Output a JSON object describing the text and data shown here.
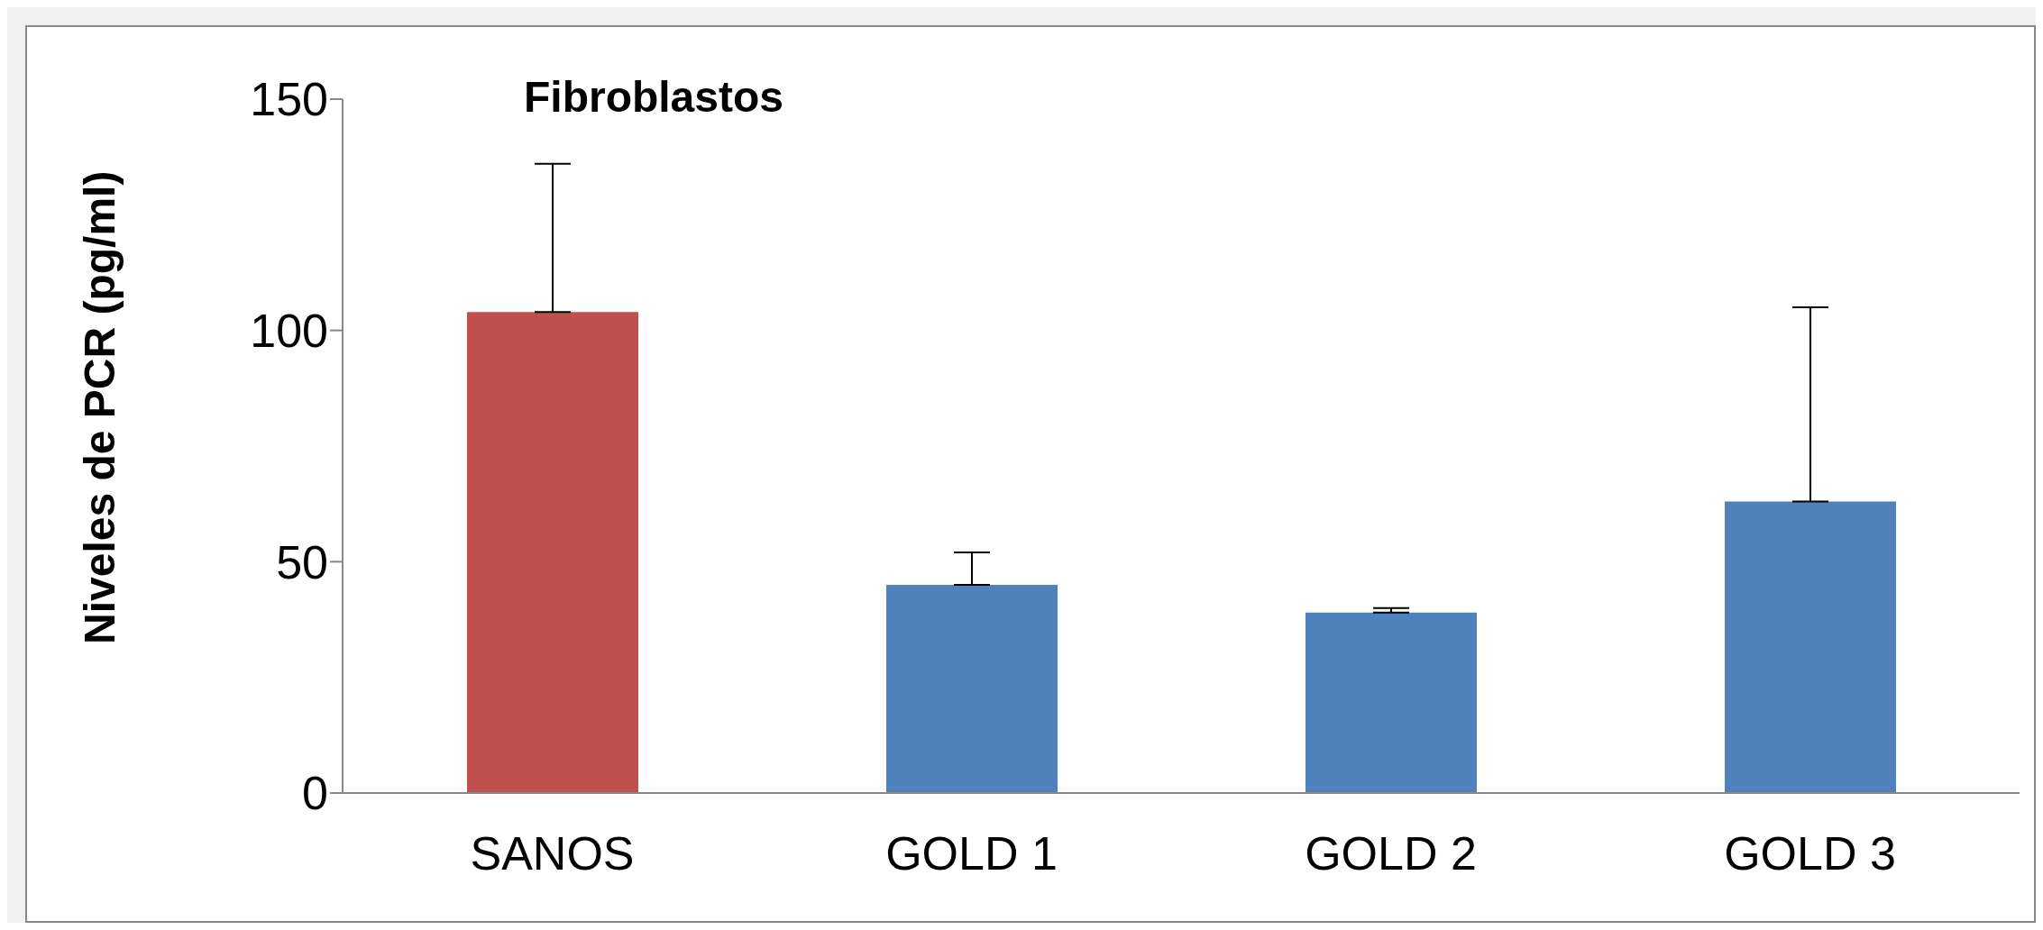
{
  "chart_data": {
    "type": "bar",
    "title": "Fibroblastos",
    "ylabel": "Niveles de PCR (pg/ml)",
    "categories": [
      "SANOS",
      "GOLD 1",
      "GOLD 2",
      "GOLD 3"
    ],
    "values": [
      104,
      45,
      39,
      63
    ],
    "colors": [
      "#c0504d",
      "#4f81bd",
      "#4f81bd",
      "#4f81bd"
    ],
    "errors": [
      [
        104,
        136
      ],
      [
        45,
        52
      ],
      [
        39,
        40
      ],
      [
        63,
        105
      ]
    ],
    "ylim": [
      0,
      150
    ],
    "yticks": [
      0,
      50,
      100,
      150
    ],
    "grid": false,
    "legend": false
  }
}
